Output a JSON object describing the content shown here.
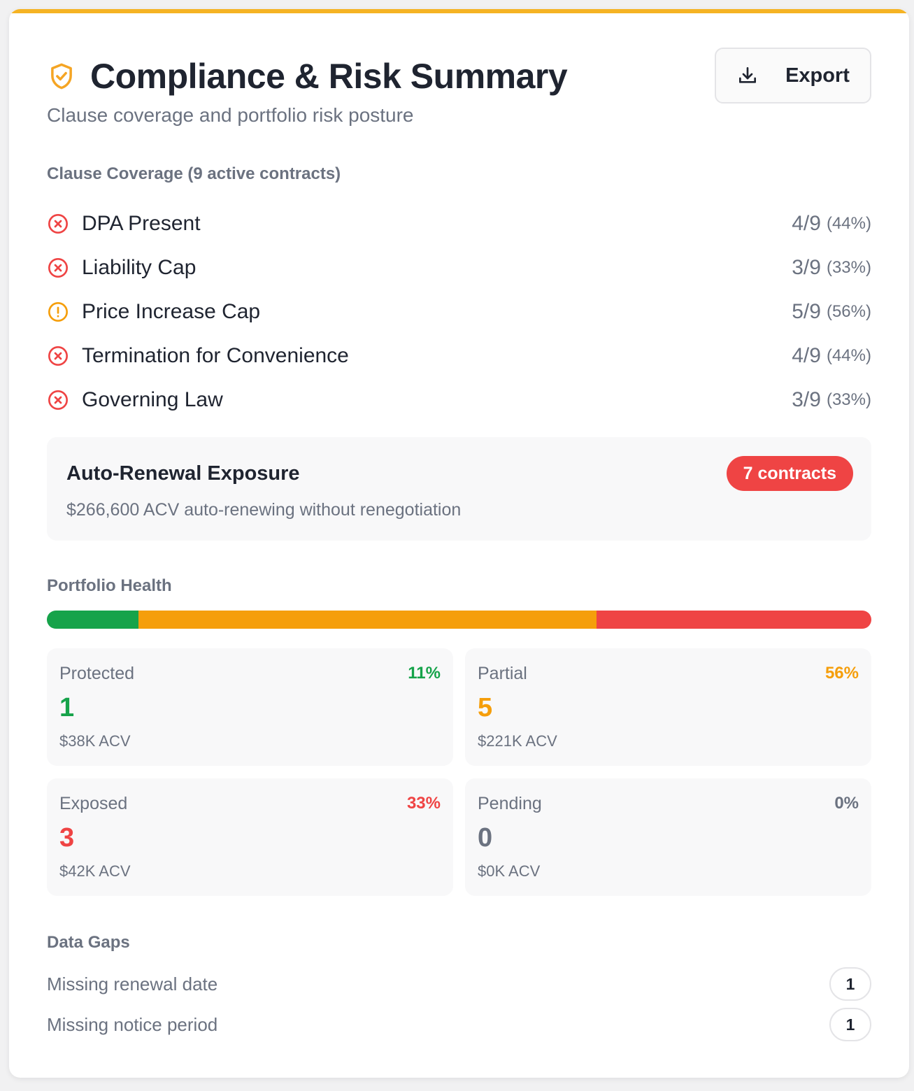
{
  "header": {
    "title": "Compliance & Risk Summary",
    "subtitle": "Clause coverage and portfolio risk posture",
    "export_label": "Export",
    "icon": "shield-check-icon",
    "accent_color": "#f5b324"
  },
  "coverage": {
    "title": "Clause Coverage (9 active contracts)",
    "items": [
      {
        "label": "DPA Present",
        "count": "4/9",
        "pct": "(44%)",
        "status": "fail"
      },
      {
        "label": "Liability Cap",
        "count": "3/9",
        "pct": "(33%)",
        "status": "fail"
      },
      {
        "label": "Price Increase Cap",
        "count": "5/9",
        "pct": "(56%)",
        "status": "warn"
      },
      {
        "label": "Termination for Convenience",
        "count": "4/9",
        "pct": "(44%)",
        "status": "fail"
      },
      {
        "label": "Governing Law",
        "count": "3/9",
        "pct": "(33%)",
        "status": "fail"
      }
    ]
  },
  "renewal": {
    "title": "Auto-Renewal Exposure",
    "subtitle": "$266,600 ACV auto-renewing without renegotiation",
    "badge": "7 contracts"
  },
  "health": {
    "title": "Portfolio Health",
    "bar": [
      {
        "name": "protected",
        "fraction": 0.111,
        "color": "#16a34a"
      },
      {
        "name": "partial",
        "fraction": 0.556,
        "color": "#f59e0b"
      },
      {
        "name": "exposed",
        "fraction": 0.333,
        "color": "#ef4444"
      }
    ],
    "tiles": [
      {
        "label": "Protected",
        "pct": "11%",
        "count": "1",
        "acv": "$38K ACV",
        "color": "#16a34a"
      },
      {
        "label": "Partial",
        "pct": "56%",
        "count": "5",
        "acv": "$221K ACV",
        "color": "#f59e0b"
      },
      {
        "label": "Exposed",
        "pct": "33%",
        "count": "3",
        "acv": "$42K ACV",
        "color": "#ef4444"
      },
      {
        "label": "Pending",
        "pct": "0%",
        "count": "0",
        "acv": "$0K ACV",
        "color": "#6b7280"
      }
    ]
  },
  "gaps": {
    "title": "Data Gaps",
    "items": [
      {
        "label": "Missing renewal date",
        "count": "1"
      },
      {
        "label": "Missing notice period",
        "count": "1"
      }
    ]
  },
  "colors": {
    "fail": "#ef4444",
    "warn": "#f59e0b"
  }
}
